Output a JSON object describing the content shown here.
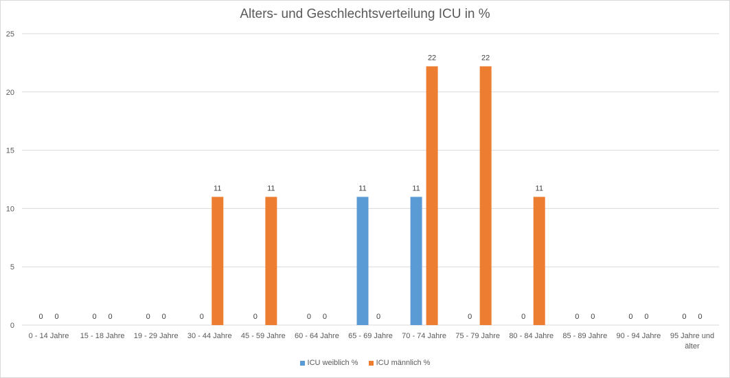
{
  "chart_data": {
    "type": "bar",
    "title": "Alters- und Geschlechtsverteilung ICU in %",
    "xlabel": "",
    "ylabel": "",
    "ylim": [
      0,
      25
    ],
    "yticks": [
      0,
      5,
      10,
      15,
      20,
      25
    ],
    "grid": true,
    "legend_position": "bottom",
    "categories": [
      "0 - 14 Jahre",
      "15 - 18 Jahre",
      "19 - 29 Jahre",
      "30 - 44 Jahre",
      "45 - 59 Jahre",
      "60 - 64 Jahre",
      "65 - 69 Jahre",
      "70 - 74 Jahre",
      "75 - 79 Jahre",
      "80 - 84 Jahre",
      "85 - 89 Jahre",
      "90 - 94 Jahre",
      "95 Jahre und älter"
    ],
    "series": [
      {
        "name": "ICU weiblich %",
        "color": "#5b9bd5",
        "values": [
          0,
          0,
          0,
          0,
          0,
          0,
          11,
          11,
          0,
          0,
          0,
          0,
          0
        ],
        "labels": [
          "0",
          "0",
          "0",
          "0",
          "0",
          "0",
          "11",
          "11",
          "0",
          "0",
          "0",
          "0",
          "0"
        ]
      },
      {
        "name": "ICU männlich %",
        "color": "#ed7d31",
        "values": [
          0,
          0,
          0,
          11,
          11,
          0,
          0,
          22.2,
          22.2,
          11,
          0,
          0,
          0
        ],
        "labels": [
          "0",
          "0",
          "0",
          "11",
          "11",
          "0",
          "0",
          "22",
          "22",
          "11",
          "0",
          "0",
          "0"
        ]
      }
    ]
  }
}
